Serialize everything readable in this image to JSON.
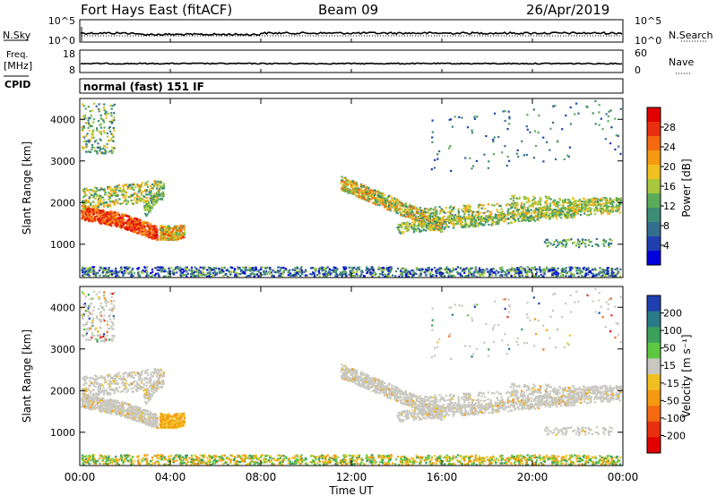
{
  "header": {
    "title": "Fort Hays East (fitACF)",
    "beam": "Beam 09",
    "date": "26/Apr/2019"
  },
  "strips": {
    "nsky_label": "N.Sky",
    "nsearch_label": "N.Search",
    "nsky_ticks": [
      "10^5",
      "10^0"
    ],
    "nsearch_ticks": [
      "10^5",
      "10^0"
    ],
    "freq_label_line1": "Freq.",
    "freq_label_line2": "[MHz]",
    "freq_ticks": [
      "18",
      "8"
    ],
    "nave_label": "Nave",
    "nave_ticks": [
      "60",
      "0"
    ],
    "cpid_label": "CPID",
    "cpid_text": "normal (fast) 151 IF"
  },
  "colors": {
    "power": [
      "#0000dd",
      "#1f3fb0",
      "#336e8e",
      "#3d8c74",
      "#5aab5a",
      "#a8c83c",
      "#f0c020",
      "#f59a10",
      "#f56a10",
      "#e83010",
      "#e00000"
    ],
    "velocity": [
      "#1f3fb0",
      "#2a7a88",
      "#3aa05a",
      "#5ec840",
      "#c8c8c0",
      "#f0c020",
      "#f59a10",
      "#f56a10",
      "#e83010",
      "#e00000"
    ]
  },
  "chart_data": [
    {
      "type": "heatmap",
      "name": "power-panel",
      "xlabel": "",
      "ylabel": "Slant Range [km]",
      "yticks": [
        "1000",
        "2000",
        "3000",
        "4000"
      ],
      "ylim": [
        200,
        4500
      ],
      "colorbar_label": "Power [dB]",
      "colorbar_ticks": [
        "4",
        "8",
        "12",
        "16",
        "20",
        "24",
        "28"
      ]
    },
    {
      "type": "heatmap",
      "name": "velocity-panel",
      "xlabel": "Time UT",
      "ylabel": "Slant Range [km]",
      "xticks": [
        "00:00",
        "04:00",
        "08:00",
        "12:00",
        "16:00",
        "20:00",
        "00:00"
      ],
      "yticks": [
        "1000",
        "2000",
        "3000",
        "4000"
      ],
      "ylim": [
        200,
        4500
      ],
      "colorbar_label": "Velocity [m s⁻¹]",
      "colorbar_ticks": [
        "200",
        "100",
        "50",
        "15",
        "-15",
        "-50",
        "-100",
        "-200"
      ]
    }
  ]
}
